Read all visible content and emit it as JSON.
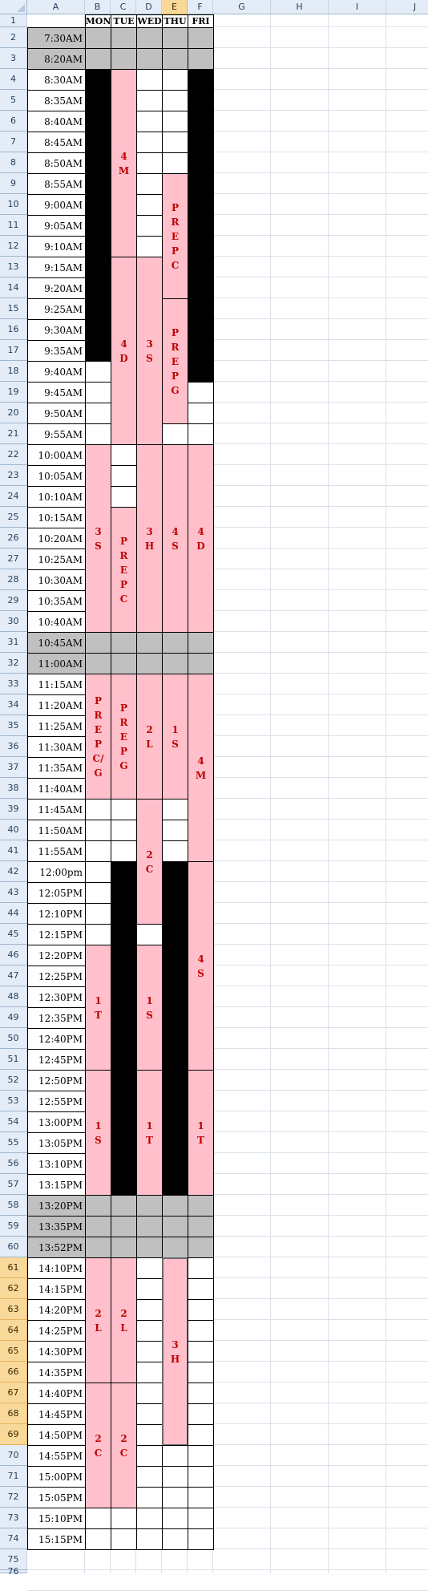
{
  "columns": [
    "A",
    "B",
    "C",
    "D",
    "E",
    "F",
    "G",
    "H",
    "I",
    "J"
  ],
  "selected_column": "E",
  "selected_rows_from": 61,
  "selected_rows_to": 69,
  "row_numbers": [
    "1",
    "2",
    "3",
    "4",
    "5",
    "6",
    "7",
    "8",
    "9",
    "10",
    "11",
    "12",
    "13",
    "14",
    "15",
    "16",
    "17",
    "18",
    "19",
    "20",
    "21",
    "22",
    "23",
    "24",
    "25",
    "26",
    "27",
    "28",
    "29",
    "30",
    "31",
    "32",
    "33",
    "34",
    "35",
    "36",
    "37",
    "38",
    "39",
    "40",
    "41",
    "42",
    "43",
    "44",
    "45",
    "46",
    "47",
    "48",
    "49",
    "50",
    "51",
    "52",
    "53",
    "54",
    "55",
    "56",
    "57",
    "58",
    "59",
    "60",
    "61",
    "62",
    "63",
    "64",
    "65",
    "66",
    "67",
    "68",
    "69",
    "70",
    "71",
    "72",
    "73",
    "74",
    "75",
    "76"
  ],
  "days": [
    "MON",
    "TUE",
    "WED",
    "THU",
    "FRI"
  ],
  "times": [
    "7:30AM",
    "8:20AM",
    "8:30AM",
    "8:35AM",
    "8:40AM",
    "8:45AM",
    "8:50AM",
    "8:55AM",
    "9:00AM",
    "9:05AM",
    "9:10AM",
    "9:15AM",
    "9:20AM",
    "9:25AM",
    "9:30AM",
    "9:35AM",
    "9:40AM",
    "9:45AM",
    "9:50AM",
    "9:55AM",
    "10:00AM",
    "10:05AM",
    "10:10AM",
    "10:15AM",
    "10:20AM",
    "10:25AM",
    "10:30AM",
    "10:35AM",
    "10:40AM",
    "10:45AM",
    "11:00AM",
    "11:15AM",
    "11:20AM",
    "11:25AM",
    "11:30AM",
    "11:35AM",
    "11:40AM",
    "11:45AM",
    "11:50AM",
    "11:55AM",
    "12:00pm",
    "12:05PM",
    "12:10PM",
    "12:15PM",
    "12:20PM",
    "12:25PM",
    "12:30PM",
    "12:35PM",
    "12:40PM",
    "12:45PM",
    "12:50PM",
    "12:55PM",
    "13:00PM",
    "13:05PM",
    "13:10PM",
    "13:15PM",
    "13:20PM",
    "13:35PM",
    "13:52PM",
    "14:10PM",
    "14:15PM",
    "14:20PM",
    "14:25PM",
    "14:30PM",
    "14:35PM",
    "14:40PM",
    "14:45PM",
    "14:50PM",
    "14:55PM",
    "15:00PM",
    "15:05PM",
    "15:10PM",
    "15:15PM"
  ],
  "break_rows": [
    2,
    3,
    31,
    32,
    58,
    59,
    60
  ],
  "blocks": [
    {
      "col": "B",
      "from": 2,
      "to": 2,
      "fill": "grey",
      "text": ""
    },
    {
      "col": "C",
      "from": 2,
      "to": 2,
      "fill": "grey",
      "text": ""
    },
    {
      "col": "D",
      "from": 2,
      "to": 2,
      "fill": "grey",
      "text": ""
    },
    {
      "col": "E",
      "from": 2,
      "to": 2,
      "fill": "grey",
      "text": ""
    },
    {
      "col": "F",
      "from": 2,
      "to": 2,
      "fill": "grey",
      "text": ""
    },
    {
      "col": "B",
      "from": 3,
      "to": 3,
      "fill": "grey",
      "text": ""
    },
    {
      "col": "C",
      "from": 3,
      "to": 3,
      "fill": "grey",
      "text": ""
    },
    {
      "col": "D",
      "from": 3,
      "to": 3,
      "fill": "grey",
      "text": ""
    },
    {
      "col": "E",
      "from": 3,
      "to": 3,
      "fill": "grey",
      "text": ""
    },
    {
      "col": "F",
      "from": 3,
      "to": 3,
      "fill": "grey",
      "text": ""
    },
    {
      "col": "B",
      "from": 4,
      "to": 17,
      "fill": "black",
      "text": ""
    },
    {
      "col": "B",
      "from": 18,
      "to": 18,
      "fill": "white",
      "text": ""
    },
    {
      "col": "B",
      "from": 19,
      "to": 19,
      "fill": "white",
      "text": ""
    },
    {
      "col": "B",
      "from": 20,
      "to": 20,
      "fill": "white",
      "text": ""
    },
    {
      "col": "B",
      "from": 21,
      "to": 21,
      "fill": "white",
      "text": ""
    },
    {
      "col": "B",
      "from": 22,
      "to": 30,
      "fill": "pink",
      "text": "3S"
    },
    {
      "col": "B",
      "from": 31,
      "to": 31,
      "fill": "grey",
      "text": ""
    },
    {
      "col": "B",
      "from": 32,
      "to": 32,
      "fill": "grey",
      "text": ""
    },
    {
      "col": "B",
      "from": 33,
      "to": 38,
      "fill": "pink",
      "text": "PREP C/G"
    },
    {
      "col": "B",
      "from": 39,
      "to": 39,
      "fill": "white",
      "text": ""
    },
    {
      "col": "B",
      "from": 40,
      "to": 40,
      "fill": "white",
      "text": ""
    },
    {
      "col": "B",
      "from": 41,
      "to": 41,
      "fill": "white",
      "text": ""
    },
    {
      "col": "B",
      "from": 42,
      "to": 42,
      "fill": "white",
      "text": ""
    },
    {
      "col": "B",
      "from": 43,
      "to": 43,
      "fill": "white",
      "text": ""
    },
    {
      "col": "B",
      "from": 44,
      "to": 44,
      "fill": "white",
      "text": ""
    },
    {
      "col": "B",
      "from": 45,
      "to": 45,
      "fill": "white",
      "text": ""
    },
    {
      "col": "B",
      "from": 46,
      "to": 51,
      "fill": "pink",
      "text": "1T"
    },
    {
      "col": "B",
      "from": 52,
      "to": 57,
      "fill": "pink",
      "text": "1S"
    },
    {
      "col": "B",
      "from": 58,
      "to": 58,
      "fill": "grey",
      "text": ""
    },
    {
      "col": "B",
      "from": 59,
      "to": 59,
      "fill": "grey",
      "text": ""
    },
    {
      "col": "B",
      "from": 60,
      "to": 60,
      "fill": "grey",
      "text": ""
    },
    {
      "col": "B",
      "from": 61,
      "to": 66,
      "fill": "pink",
      "text": "2L"
    },
    {
      "col": "B",
      "from": 67,
      "to": 72,
      "fill": "pink",
      "text": "2C"
    },
    {
      "col": "B",
      "from": 73,
      "to": 73,
      "fill": "white",
      "text": ""
    },
    {
      "col": "B",
      "from": 74,
      "to": 74,
      "fill": "white",
      "text": ""
    },
    {
      "col": "C",
      "from": 4,
      "to": 12,
      "fill": "pink",
      "text": "4M"
    },
    {
      "col": "C",
      "from": 13,
      "to": 21,
      "fill": "pink",
      "text": "4D"
    },
    {
      "col": "C",
      "from": 22,
      "to": 22,
      "fill": "white",
      "text": ""
    },
    {
      "col": "C",
      "from": 23,
      "to": 23,
      "fill": "white",
      "text": ""
    },
    {
      "col": "C",
      "from": 24,
      "to": 24,
      "fill": "white",
      "text": ""
    },
    {
      "col": "C",
      "from": 25,
      "to": 30,
      "fill": "pink",
      "text": "PREP C"
    },
    {
      "col": "C",
      "from": 31,
      "to": 31,
      "fill": "grey",
      "text": ""
    },
    {
      "col": "C",
      "from": 32,
      "to": 32,
      "fill": "grey",
      "text": ""
    },
    {
      "col": "C",
      "from": 33,
      "to": 38,
      "fill": "pink",
      "text": "PREP G"
    },
    {
      "col": "C",
      "from": 39,
      "to": 39,
      "fill": "white",
      "text": ""
    },
    {
      "col": "C",
      "from": 40,
      "to": 40,
      "fill": "white",
      "text": ""
    },
    {
      "col": "C",
      "from": 41,
      "to": 41,
      "fill": "white",
      "text": ""
    },
    {
      "col": "C",
      "from": 42,
      "to": 57,
      "fill": "black",
      "text": ""
    },
    {
      "col": "C",
      "from": 58,
      "to": 58,
      "fill": "grey",
      "text": ""
    },
    {
      "col": "C",
      "from": 59,
      "to": 59,
      "fill": "grey",
      "text": ""
    },
    {
      "col": "C",
      "from": 60,
      "to": 60,
      "fill": "grey",
      "text": ""
    },
    {
      "col": "C",
      "from": 61,
      "to": 66,
      "fill": "pink",
      "text": "2L"
    },
    {
      "col": "C",
      "from": 67,
      "to": 72,
      "fill": "pink",
      "text": "2C"
    },
    {
      "col": "C",
      "from": 73,
      "to": 73,
      "fill": "white",
      "text": ""
    },
    {
      "col": "C",
      "from": 74,
      "to": 74,
      "fill": "white",
      "text": ""
    },
    {
      "col": "D",
      "from": 4,
      "to": 4,
      "fill": "white",
      "text": ""
    },
    {
      "col": "D",
      "from": 5,
      "to": 5,
      "fill": "white",
      "text": ""
    },
    {
      "col": "D",
      "from": 6,
      "to": 6,
      "fill": "white",
      "text": ""
    },
    {
      "col": "D",
      "from": 7,
      "to": 7,
      "fill": "white",
      "text": ""
    },
    {
      "col": "D",
      "from": 8,
      "to": 8,
      "fill": "white",
      "text": ""
    },
    {
      "col": "D",
      "from": 9,
      "to": 9,
      "fill": "white",
      "text": ""
    },
    {
      "col": "D",
      "from": 10,
      "to": 10,
      "fill": "white",
      "text": ""
    },
    {
      "col": "D",
      "from": 11,
      "to": 11,
      "fill": "white",
      "text": ""
    },
    {
      "col": "D",
      "from": 12,
      "to": 12,
      "fill": "white",
      "text": ""
    },
    {
      "col": "D",
      "from": 13,
      "to": 21,
      "fill": "pink",
      "text": "3S"
    },
    {
      "col": "D",
      "from": 22,
      "to": 30,
      "fill": "pink",
      "text": "3H"
    },
    {
      "col": "D",
      "from": 31,
      "to": 31,
      "fill": "grey",
      "text": ""
    },
    {
      "col": "D",
      "from": 32,
      "to": 32,
      "fill": "grey",
      "text": ""
    },
    {
      "col": "D",
      "from": 33,
      "to": 38,
      "fill": "pink",
      "text": "2L"
    },
    {
      "col": "D",
      "from": 39,
      "to": 44,
      "fill": "pink",
      "text": "2C"
    },
    {
      "col": "D",
      "from": 45,
      "to": 45,
      "fill": "white",
      "text": ""
    },
    {
      "col": "D",
      "from": 46,
      "to": 51,
      "fill": "pink",
      "text": "1S"
    },
    {
      "col": "D",
      "from": 52,
      "to": 57,
      "fill": "pink",
      "text": "1T"
    },
    {
      "col": "D",
      "from": 58,
      "to": 58,
      "fill": "grey",
      "text": ""
    },
    {
      "col": "D",
      "from": 59,
      "to": 59,
      "fill": "grey",
      "text": ""
    },
    {
      "col": "D",
      "from": 60,
      "to": 60,
      "fill": "grey",
      "text": ""
    },
    {
      "col": "D",
      "from": 61,
      "to": 61,
      "fill": "white",
      "text": ""
    },
    {
      "col": "D",
      "from": 62,
      "to": 62,
      "fill": "white",
      "text": ""
    },
    {
      "col": "D",
      "from": 63,
      "to": 63,
      "fill": "white",
      "text": ""
    },
    {
      "col": "D",
      "from": 64,
      "to": 64,
      "fill": "white",
      "text": ""
    },
    {
      "col": "D",
      "from": 65,
      "to": 65,
      "fill": "white",
      "text": ""
    },
    {
      "col": "D",
      "from": 66,
      "to": 66,
      "fill": "white",
      "text": ""
    },
    {
      "col": "D",
      "from": 67,
      "to": 67,
      "fill": "white",
      "text": ""
    },
    {
      "col": "D",
      "from": 68,
      "to": 68,
      "fill": "white",
      "text": ""
    },
    {
      "col": "D",
      "from": 69,
      "to": 69,
      "fill": "white",
      "text": ""
    },
    {
      "col": "D",
      "from": 70,
      "to": 70,
      "fill": "white",
      "text": ""
    },
    {
      "col": "D",
      "from": 71,
      "to": 71,
      "fill": "white",
      "text": ""
    },
    {
      "col": "D",
      "from": 72,
      "to": 72,
      "fill": "white",
      "text": ""
    },
    {
      "col": "D",
      "from": 73,
      "to": 73,
      "fill": "white",
      "text": ""
    },
    {
      "col": "D",
      "from": 74,
      "to": 74,
      "fill": "white",
      "text": ""
    },
    {
      "col": "E",
      "from": 4,
      "to": 4,
      "fill": "white",
      "text": ""
    },
    {
      "col": "E",
      "from": 5,
      "to": 5,
      "fill": "white",
      "text": ""
    },
    {
      "col": "E",
      "from": 6,
      "to": 6,
      "fill": "white",
      "text": ""
    },
    {
      "col": "E",
      "from": 7,
      "to": 7,
      "fill": "white",
      "text": ""
    },
    {
      "col": "E",
      "from": 8,
      "to": 8,
      "fill": "white",
      "text": ""
    },
    {
      "col": "E",
      "from": 9,
      "to": 14,
      "fill": "pink",
      "text": "PREP C"
    },
    {
      "col": "E",
      "from": 15,
      "to": 20,
      "fill": "pink",
      "text": "PREP G"
    },
    {
      "col": "E",
      "from": 21,
      "to": 21,
      "fill": "white",
      "text": ""
    },
    {
      "col": "E",
      "from": 22,
      "to": 30,
      "fill": "pink",
      "text": "4S"
    },
    {
      "col": "E",
      "from": 31,
      "to": 31,
      "fill": "grey",
      "text": ""
    },
    {
      "col": "E",
      "from": 32,
      "to": 32,
      "fill": "grey",
      "text": ""
    },
    {
      "col": "E",
      "from": 33,
      "to": 38,
      "fill": "pink",
      "text": "1S"
    },
    {
      "col": "E",
      "from": 39,
      "to": 39,
      "fill": "white",
      "text": ""
    },
    {
      "col": "E",
      "from": 40,
      "to": 40,
      "fill": "white",
      "text": ""
    },
    {
      "col": "E",
      "from": 41,
      "to": 41,
      "fill": "white",
      "text": ""
    },
    {
      "col": "E",
      "from": 42,
      "to": 57,
      "fill": "black",
      "text": ""
    },
    {
      "col": "E",
      "from": 58,
      "to": 58,
      "fill": "grey",
      "text": ""
    },
    {
      "col": "E",
      "from": 59,
      "to": 59,
      "fill": "grey",
      "text": ""
    },
    {
      "col": "E",
      "from": 60,
      "to": 60,
      "fill": "grey",
      "text": ""
    },
    {
      "col": "E",
      "from": 61,
      "to": 69,
      "fill": "pink",
      "text": "3H",
      "selected": true
    },
    {
      "col": "E",
      "from": 70,
      "to": 70,
      "fill": "white",
      "text": ""
    },
    {
      "col": "E",
      "from": 71,
      "to": 71,
      "fill": "white",
      "text": ""
    },
    {
      "col": "E",
      "from": 72,
      "to": 72,
      "fill": "white",
      "text": ""
    },
    {
      "col": "E",
      "from": 73,
      "to": 73,
      "fill": "white",
      "text": ""
    },
    {
      "col": "E",
      "from": 74,
      "to": 74,
      "fill": "white",
      "text": ""
    },
    {
      "col": "F",
      "from": 4,
      "to": 18,
      "fill": "black",
      "text": ""
    },
    {
      "col": "F",
      "from": 19,
      "to": 19,
      "fill": "white",
      "text": ""
    },
    {
      "col": "F",
      "from": 20,
      "to": 20,
      "fill": "white",
      "text": ""
    },
    {
      "col": "F",
      "from": 21,
      "to": 21,
      "fill": "white",
      "text": ""
    },
    {
      "col": "F",
      "from": 22,
      "to": 30,
      "fill": "pink",
      "text": "4D"
    },
    {
      "col": "F",
      "from": 31,
      "to": 31,
      "fill": "grey",
      "text": ""
    },
    {
      "col": "F",
      "from": 32,
      "to": 32,
      "fill": "grey",
      "text": ""
    },
    {
      "col": "F",
      "from": 33,
      "to": 41,
      "fill": "pink",
      "text": "4M"
    },
    {
      "col": "F",
      "from": 42,
      "to": 51,
      "fill": "pink",
      "text": "4S"
    },
    {
      "col": "F",
      "from": 52,
      "to": 57,
      "fill": "pink",
      "text": "1T"
    },
    {
      "col": "F",
      "from": 58,
      "to": 58,
      "fill": "grey",
      "text": ""
    },
    {
      "col": "F",
      "from": 59,
      "to": 59,
      "fill": "grey",
      "text": ""
    },
    {
      "col": "F",
      "from": 60,
      "to": 60,
      "fill": "grey",
      "text": ""
    },
    {
      "col": "F",
      "from": 61,
      "to": 61,
      "fill": "white",
      "text": ""
    },
    {
      "col": "F",
      "from": 62,
      "to": 62,
      "fill": "white",
      "text": ""
    },
    {
      "col": "F",
      "from": 63,
      "to": 63,
      "fill": "white",
      "text": ""
    },
    {
      "col": "F",
      "from": 64,
      "to": 64,
      "fill": "white",
      "text": ""
    },
    {
      "col": "F",
      "from": 65,
      "to": 65,
      "fill": "white",
      "text": ""
    },
    {
      "col": "F",
      "from": 66,
      "to": 66,
      "fill": "white",
      "text": ""
    },
    {
      "col": "F",
      "from": 67,
      "to": 67,
      "fill": "white",
      "text": ""
    },
    {
      "col": "F",
      "from": 68,
      "to": 68,
      "fill": "white",
      "text": ""
    },
    {
      "col": "F",
      "from": 69,
      "to": 69,
      "fill": "white",
      "text": ""
    },
    {
      "col": "F",
      "from": 70,
      "to": 70,
      "fill": "white",
      "text": ""
    },
    {
      "col": "F",
      "from": 71,
      "to": 71,
      "fill": "white",
      "text": ""
    },
    {
      "col": "F",
      "from": 72,
      "to": 72,
      "fill": "white",
      "text": ""
    },
    {
      "col": "F",
      "from": 73,
      "to": 73,
      "fill": "white",
      "text": ""
    },
    {
      "col": "F",
      "from": 74,
      "to": 74,
      "fill": "white",
      "text": ""
    }
  ],
  "colors": {
    "pink": "#ffc0cb",
    "break_grey": "#c0c0c0",
    "text_red": "#c00000",
    "header_blue": "#e4ecf7",
    "header_selected": "#f9d99a"
  }
}
